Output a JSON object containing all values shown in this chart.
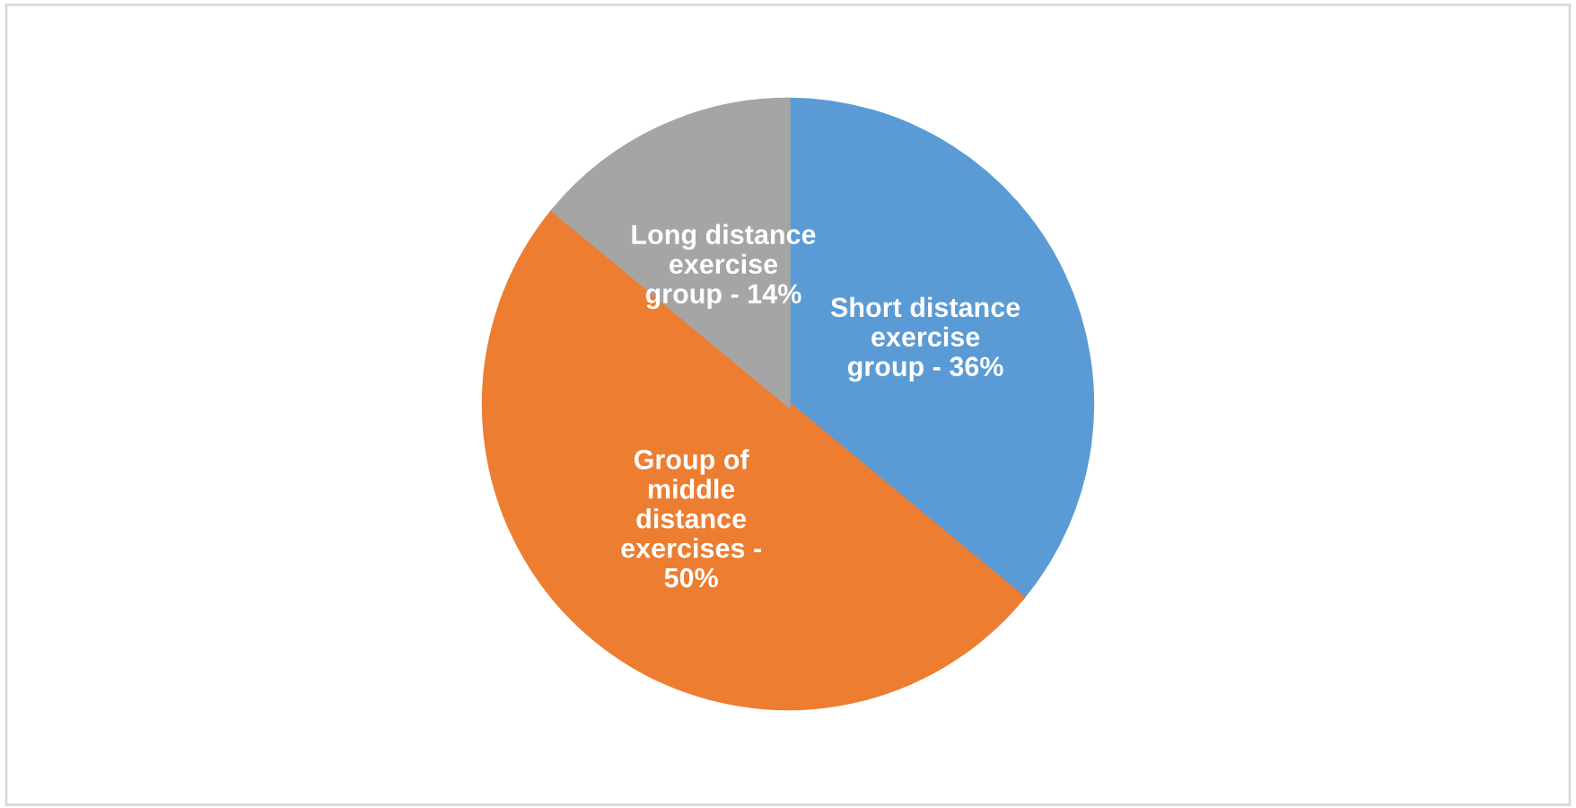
{
  "chart_data": {
    "type": "pie",
    "categories": [
      "Short distance\nexercise\ngroup - 36%",
      "Group of\nmiddle\ndistance\nexercises -\n50%",
      "Long distance\nexercise\ngroup - 14%"
    ],
    "values": [
      36,
      50,
      14
    ],
    "colors": [
      "#5b9bd5",
      "#ed7d31",
      "#a5a5a5"
    ],
    "legend": false
  }
}
